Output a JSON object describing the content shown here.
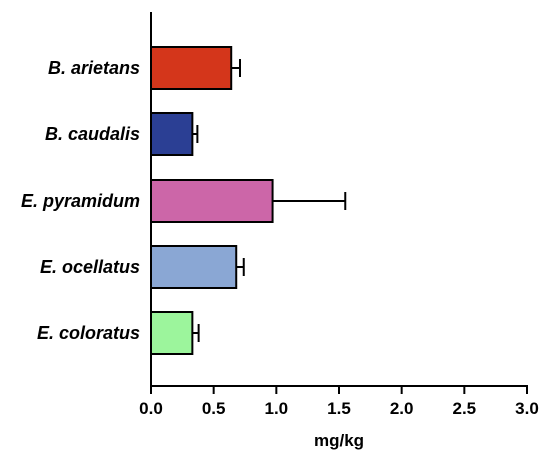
{
  "chart_data": {
    "type": "bar",
    "orientation": "horizontal",
    "categories": [
      "B. arietans",
      "B. caudalis",
      "E. pyramidum",
      "E. ocellatus",
      "E. coloratus"
    ],
    "values": [
      0.64,
      0.33,
      0.97,
      0.68,
      0.33
    ],
    "errors": [
      0.07,
      0.04,
      0.58,
      0.06,
      0.05
    ],
    "colors": [
      "#d4361b",
      "#2b3f94",
      "#cc66a8",
      "#8aa7d4",
      "#9cf59c"
    ],
    "xlabel": "mg/kg",
    "xlim": [
      0,
      3.0
    ],
    "xticks": [
      "0.0",
      "0.5",
      "1.0",
      "1.5",
      "2.0",
      "2.5",
      "3.0"
    ],
    "grid": false
  }
}
